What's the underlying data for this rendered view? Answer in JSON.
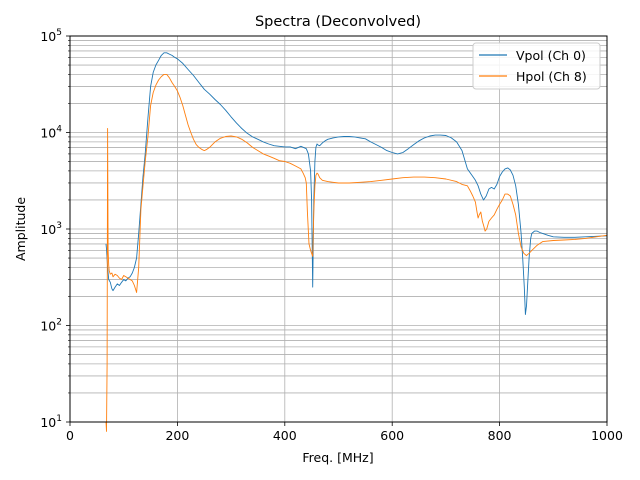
{
  "chart_data": {
    "type": "line",
    "title": "Spectra (Deconvolved)",
    "xlabel": "Freq. [MHz]",
    "ylabel": "Amplitude",
    "xlim": [
      0,
      1000
    ],
    "ylim": [
      10,
      100000
    ],
    "yscale": "log",
    "grid": true,
    "legend_position": "top-right",
    "x_ticks": [
      {
        "value": 0,
        "label": "0"
      },
      {
        "value": 200,
        "label": "200"
      },
      {
        "value": 400,
        "label": "400"
      },
      {
        "value": 600,
        "label": "600"
      },
      {
        "value": 800,
        "label": "800"
      },
      {
        "value": 1000,
        "label": "1000"
      }
    ],
    "y_ticks": [
      {
        "value": 10,
        "mantissa": "10",
        "exponent": "1"
      },
      {
        "value": 100,
        "mantissa": "10",
        "exponent": "2"
      },
      {
        "value": 1000,
        "mantissa": "10",
        "exponent": "3"
      },
      {
        "value": 10000,
        "mantissa": "10",
        "exponent": "4"
      },
      {
        "value": 100000,
        "mantissa": "10",
        "exponent": "5"
      }
    ],
    "series": [
      {
        "name": "Vpol (Ch 0)",
        "color": "#1f77b4",
        "x": [
          67,
          68,
          70,
          72,
          75,
          78,
          80,
          84,
          88,
          92,
          96,
          100,
          104,
          108,
          112,
          116,
          120,
          124,
          128,
          132,
          136,
          140,
          145,
          150,
          155,
          160,
          165,
          170,
          175,
          180,
          185,
          190,
          195,
          200,
          210,
          220,
          230,
          240,
          250,
          260,
          270,
          280,
          290,
          300,
          310,
          320,
          330,
          340,
          350,
          360,
          370,
          380,
          390,
          400,
          410,
          420,
          430,
          440,
          444,
          448,
          450,
          452,
          454,
          456,
          458,
          460,
          462,
          465,
          470,
          475,
          480,
          490,
          500,
          510,
          520,
          530,
          540,
          550,
          560,
          570,
          580,
          590,
          600,
          610,
          620,
          630,
          640,
          650,
          660,
          670,
          680,
          690,
          700,
          710,
          720,
          730,
          740,
          750,
          755,
          760,
          765,
          770,
          775,
          780,
          785,
          790,
          795,
          800,
          805,
          810,
          815,
          820,
          825,
          830,
          835,
          840,
          843,
          846,
          848,
          850,
          852,
          855,
          858,
          860,
          865,
          870,
          875,
          880,
          890,
          900,
          920,
          940,
          960,
          980,
          1000
        ],
        "y": [
          700,
          620,
          400,
          300,
          280,
          240,
          230,
          250,
          270,
          260,
          280,
          300,
          290,
          310,
          320,
          350,
          400,
          500,
          900,
          1800,
          3500,
          6000,
          14000,
          30000,
          42000,
          50000,
          56000,
          63000,
          67000,
          67000,
          65000,
          63000,
          60000,
          58000,
          52000,
          45000,
          39000,
          33000,
          28000,
          25000,
          22000,
          19500,
          17000,
          14500,
          12500,
          11000,
          9800,
          9000,
          8500,
          8000,
          7600,
          7300,
          7200,
          7100,
          7100,
          6800,
          7200,
          6800,
          6000,
          4000,
          2000,
          250,
          2000,
          5000,
          7000,
          7600,
          7400,
          7300,
          7800,
          8200,
          8500,
          8800,
          9000,
          9100,
          9100,
          9000,
          8800,
          8600,
          8000,
          7500,
          7000,
          6500,
          6200,
          6000,
          6200,
          6800,
          7500,
          8200,
          8800,
          9200,
          9400,
          9400,
          9300,
          8800,
          8000,
          6500,
          4200,
          3500,
          3200,
          2800,
          2300,
          2000,
          2200,
          2600,
          2700,
          2600,
          2900,
          3500,
          3900,
          4200,
          4300,
          4100,
          3600,
          2800,
          1800,
          900,
          500,
          250,
          130,
          160,
          250,
          500,
          800,
          900,
          950,
          950,
          920,
          900,
          860,
          830,
          820,
          820,
          830,
          840,
          850
        ]
      },
      {
        "name": "Hpol (Ch 8)",
        "color": "#ff7f0e",
        "x": [
          67,
          68,
          69,
          70,
          71,
          72,
          73,
          75,
          78,
          80,
          84,
          88,
          92,
          96,
          100,
          104,
          108,
          112,
          116,
          120,
          124,
          128,
          132,
          136,
          140,
          145,
          150,
          155,
          160,
          165,
          170,
          175,
          180,
          185,
          190,
          195,
          200,
          205,
          210,
          215,
          220,
          225,
          230,
          235,
          240,
          245,
          250,
          255,
          260,
          270,
          280,
          290,
          300,
          310,
          320,
          330,
          340,
          350,
          360,
          370,
          380,
          390,
          400,
          410,
          420,
          430,
          434,
          438,
          440,
          442,
          445,
          448,
          450,
          452,
          454,
          456,
          458,
          460,
          462,
          465,
          470,
          480,
          490,
          500,
          520,
          540,
          560,
          580,
          600,
          620,
          640,
          660,
          680,
          700,
          720,
          730,
          740,
          745,
          750,
          755,
          758,
          760,
          762,
          765,
          768,
          770,
          773,
          776,
          780,
          785,
          790,
          795,
          800,
          805,
          810,
          815,
          820,
          825,
          830,
          835,
          840,
          845,
          850,
          855,
          860,
          870,
          880,
          900,
          920,
          940,
          960,
          980,
          1000
        ],
        "y": [
          10,
          8,
          40,
          11000,
          600,
          420,
          370,
          340,
          350,
          320,
          340,
          330,
          310,
          300,
          330,
          320,
          310,
          300,
          290,
          260,
          220,
          400,
          1600,
          2800,
          5000,
          9000,
          19000,
          26000,
          31000,
          35000,
          38000,
          40000,
          40000,
          37000,
          33000,
          30000,
          27000,
          23000,
          19000,
          15000,
          12000,
          10000,
          8500,
          7500,
          7000,
          6700,
          6500,
          6700,
          7000,
          8000,
          8700,
          9100,
          9200,
          9000,
          8500,
          7800,
          7000,
          6500,
          6000,
          5700,
          5400,
          5100,
          5000,
          4800,
          4500,
          4200,
          3800,
          3400,
          3000,
          1500,
          700,
          600,
          560,
          520,
          1500,
          2800,
          3600,
          3800,
          3700,
          3400,
          3200,
          3100,
          3050,
          3000,
          3000,
          3050,
          3100,
          3200,
          3300,
          3400,
          3450,
          3450,
          3400,
          3300,
          3100,
          2900,
          2800,
          2500,
          2200,
          1900,
          1500,
          1300,
          1400,
          1500,
          1200,
          1100,
          950,
          1000,
          1200,
          1300,
          1400,
          1600,
          1800,
          2000,
          2300,
          2300,
          2200,
          1800,
          1400,
          900,
          650,
          560,
          530,
          560,
          600,
          680,
          740,
          760,
          770,
          780,
          800,
          830,
          860
        ]
      }
    ]
  }
}
